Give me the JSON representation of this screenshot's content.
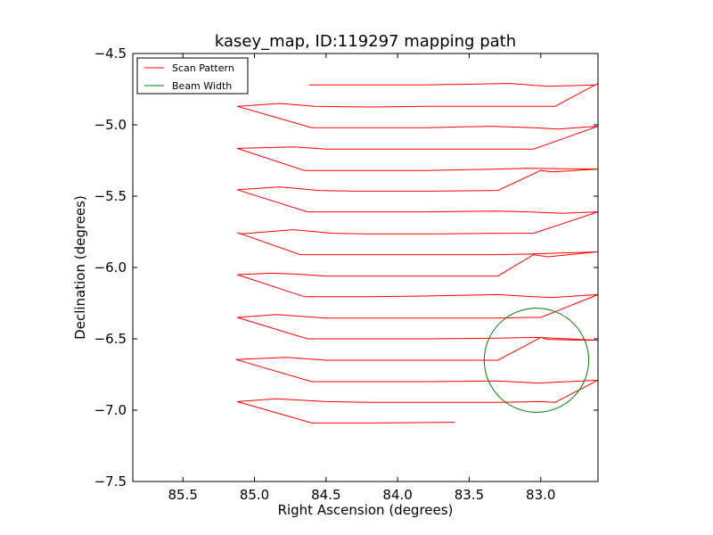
{
  "chart_data": {
    "type": "line",
    "title": "kasey_map, ID:119297 mapping path",
    "xlabel": "Right Ascension (degrees)",
    "ylabel": "Declination (degrees)",
    "xlim": [
      85.85,
      82.6
    ],
    "ylim": [
      -7.5,
      -4.5
    ],
    "x_ticks": [
      85.5,
      85.0,
      84.5,
      84.0,
      83.5,
      83.0
    ],
    "x_tick_labels": [
      "85.5",
      "85.0",
      "84.5",
      "84.0",
      "83.5",
      "83.0"
    ],
    "y_ticks": [
      -4.5,
      -5.0,
      -5.5,
      -6.0,
      -6.5,
      -7.0,
      -7.5
    ],
    "y_tick_labels": [
      "−4.5",
      "−5.0",
      "−5.5",
      "−6.0",
      "−6.5",
      "−7.0",
      "−7.5"
    ],
    "grid": false,
    "legend_position": "top-left",
    "series": [
      {
        "name": "Scan Pattern",
        "color": "#ff0000",
        "type": "line",
        "x": [
          84.62,
          84.2,
          83.8,
          83.22,
          82.95,
          82.62,
          82.6,
          82.9,
          83.05,
          83.3,
          83.8,
          84.2,
          84.58,
          84.82,
          85.12,
          84.6,
          84.3,
          83.8,
          83.35,
          83.05,
          82.88,
          82.6,
          83.05,
          83.3,
          83.8,
          84.2,
          84.5,
          84.72,
          85.12,
          84.65,
          84.2,
          83.8,
          83.3,
          83.1,
          82.6,
          82.92,
          83.0,
          83.3,
          83.8,
          84.3,
          84.55,
          84.82,
          85.12,
          84.63,
          84.2,
          83.8,
          83.3,
          83.08,
          82.85,
          82.6,
          83.05,
          83.3,
          83.8,
          84.2,
          84.45,
          84.73,
          85.1,
          85.12,
          84.68,
          84.2,
          83.8,
          83.3,
          83.05,
          82.6,
          82.95,
          83.05,
          83.3,
          83.8,
          84.2,
          84.5,
          84.73,
          84.88,
          85.12,
          84.65,
          84.2,
          83.8,
          83.3,
          83.05,
          82.92,
          82.6,
          83.0,
          83.1,
          83.3,
          83.8,
          84.2,
          84.5,
          84.85,
          85.12,
          84.63,
          84.2,
          83.8,
          83.3,
          83.02,
          82.6,
          82.95,
          83.0,
          83.3,
          83.8,
          84.2,
          84.5,
          84.78,
          85.13,
          84.6,
          84.2,
          83.8,
          83.3,
          83.02,
          82.6,
          82.9,
          83.0,
          83.3,
          83.8,
          84.2,
          84.5,
          84.85,
          85.12,
          84.6,
          84.2,
          83.6
        ],
        "y": [
          -4.72,
          -4.72,
          -4.72,
          -4.71,
          -4.73,
          -4.72,
          -4.71,
          -4.87,
          -4.87,
          -4.87,
          -4.87,
          -4.875,
          -4.87,
          -4.85,
          -4.87,
          -5.02,
          -5.02,
          -5.02,
          -5.01,
          -5.02,
          -5.03,
          -5.01,
          -5.17,
          -5.17,
          -5.17,
          -5.17,
          -5.17,
          -5.155,
          -5.165,
          -5.32,
          -5.32,
          -5.32,
          -5.31,
          -5.305,
          -5.31,
          -5.33,
          -5.32,
          -5.46,
          -5.465,
          -5.465,
          -5.46,
          -5.435,
          -5.455,
          -5.61,
          -5.61,
          -5.61,
          -5.605,
          -5.61,
          -5.62,
          -5.61,
          -5.76,
          -5.76,
          -5.765,
          -5.765,
          -5.76,
          -5.735,
          -5.765,
          -5.755,
          -5.91,
          -5.91,
          -5.91,
          -5.91,
          -5.905,
          -5.89,
          -5.925,
          -5.91,
          -6.06,
          -6.06,
          -6.06,
          -6.06,
          -6.045,
          -6.04,
          -6.05,
          -6.205,
          -6.205,
          -6.2,
          -6.19,
          -6.205,
          -6.21,
          -6.19,
          -6.35,
          -6.35,
          -6.355,
          -6.355,
          -6.355,
          -6.355,
          -6.33,
          -6.35,
          -6.5,
          -6.5,
          -6.5,
          -6.495,
          -6.49,
          -6.51,
          -6.505,
          -6.49,
          -6.65,
          -6.65,
          -6.65,
          -6.65,
          -6.63,
          -6.645,
          -6.8,
          -6.8,
          -6.8,
          -6.795,
          -6.81,
          -6.79,
          -6.945,
          -6.94,
          -6.945,
          -6.945,
          -6.945,
          -6.94,
          -6.92,
          -6.94,
          -7.09,
          -7.09,
          -7.085
        ]
      },
      {
        "name": "Beam Width",
        "color": "#008000",
        "type": "circle",
        "center": [
          83.03,
          -6.65
        ],
        "radius": 0.365
      }
    ]
  }
}
